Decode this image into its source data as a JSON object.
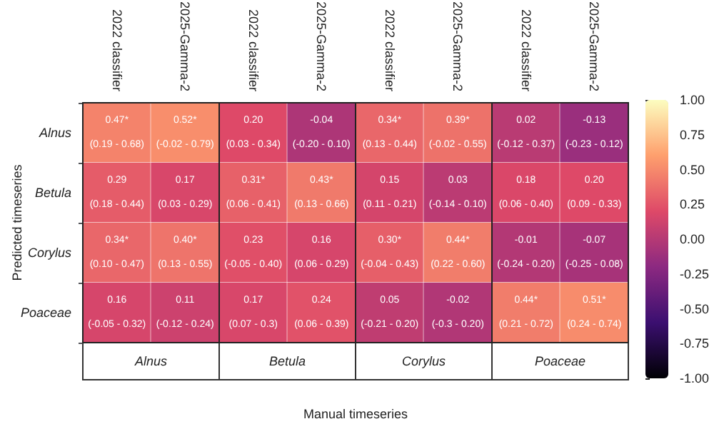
{
  "chart_data": {
    "type": "heatmap",
    "xlabel": "Manual timeseries",
    "ylabel": "Predicted timeseries",
    "categories": [
      "2022 classifier",
      "2025-Gamma-2",
      "2022 classifier",
      "2025-Gamma-2",
      "2022 classifier",
      "2025-Gamma-2",
      "2022 classifier",
      "2025-Gamma-2"
    ],
    "y_categories": [
      "Alnus",
      "Betula",
      "Corylus",
      "Poaceae"
    ],
    "annotations": [
      "Alnus",
      "Betula",
      "Corylus",
      "Poaceae"
    ],
    "cells": [
      [
        0.47,
        0.52,
        0.2,
        -0.04,
        0.34,
        0.39,
        0.02,
        -0.13
      ],
      [
        0.29,
        0.17,
        0.31,
        0.43,
        0.15,
        0.03,
        0.18,
        0.2
      ],
      [
        0.34,
        0.4,
        0.23,
        0.16,
        0.3,
        0.44,
        -0.01,
        -0.07
      ],
      [
        0.16,
        0.11,
        0.17,
        0.24,
        0.05,
        -0.02,
        0.44,
        0.51
      ]
    ],
    "cell_labels": [
      [
        "0.47*\n(0.19 - 0.68)",
        "0.52*\n(-0.02 - 0.79)",
        "0.20\n(0.03 - 0.34)",
        "-0.04\n(-0.20 - 0.10)",
        "0.34*\n(0.13 - 0.44)",
        "0.39*\n(-0.02 - 0.55)",
        "0.02\n(-0.12 - 0.37)",
        "-0.13\n(-0.23 - 0.12)"
      ],
      [
        "0.29\n(0.18 - 0.44)",
        "0.17\n(0.03 - 0.29)",
        "0.31*\n(0.06 - 0.41)",
        "0.43*\n(0.13 - 0.66)",
        "0.15\n(0.11 - 0.21)",
        "0.03\n(-0.14 - 0.10)",
        "0.18\n(0.06 - 0.40)",
        "0.20\n(0.09 - 0.33)"
      ],
      [
        "0.34*\n(0.10 - 0.47)",
        "0.40*\n(0.13 - 0.55)",
        "0.23\n(-0.05 - 0.40)",
        "0.16\n(0.06 - 0.29)",
        "0.30*\n(-0.04 - 0.43)",
        "0.44*\n(0.22 - 0.60)",
        "-0.01\n(-0.24 - 0.20)",
        "-0.07\n(-0.25 - 0.08)"
      ],
      [
        "0.16\n(-0.05 - 0.32)",
        "0.11\n(-0.12 - 0.24)",
        "0.17\n(0.07 - 0.3)",
        "0.24\n(0.06 - 0.39)",
        "0.05\n(-0.21 - 0.20)",
        "-0.02\n(-0.3 - 0.20)",
        "0.44*\n(0.21 - 0.72)",
        "0.51*\n(0.24 - 0.74)"
      ]
    ],
    "clim": [
      -1,
      1
    ],
    "cticks": [
      {
        "value": 1,
        "label": "1.00"
      },
      {
        "value": 0.75,
        "label": "0.75"
      },
      {
        "value": 0.5,
        "label": "0.50"
      },
      {
        "value": 0.25,
        "label": "0.25"
      },
      {
        "value": 0,
        "label": "0.00"
      },
      {
        "value": -0.25,
        "label": "-0.25"
      },
      {
        "value": -0.5,
        "label": "-0.50"
      },
      {
        "value": -0.75,
        "label": "-0.75"
      },
      {
        "value": -1,
        "label": "-1.00"
      }
    ]
  }
}
